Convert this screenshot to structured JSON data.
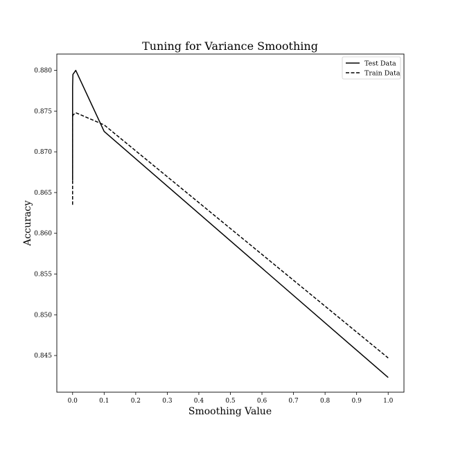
{
  "chart_data": {
    "type": "line",
    "title": "Tuning for Variance Smoothing",
    "xlabel": "Smoothing Value",
    "ylabel": "Accuracy",
    "xlim": [
      -0.05,
      1.05
    ],
    "ylim": [
      0.8405,
      0.882
    ],
    "xticks": [
      0.0,
      0.1,
      0.2,
      0.3,
      0.4,
      0.5,
      0.6,
      0.7,
      0.8,
      0.9,
      1.0
    ],
    "xtick_labels": [
      "0.0",
      "0.1",
      "0.2",
      "0.3",
      "0.4",
      "0.5",
      "0.6",
      "0.7",
      "0.8",
      "0.9",
      "1.0"
    ],
    "yticks": [
      0.845,
      0.85,
      0.855,
      0.86,
      0.865,
      0.87,
      0.875,
      0.88
    ],
    "ytick_labels": [
      "0.845",
      "0.850",
      "0.855",
      "0.860",
      "0.865",
      "0.870",
      "0.875",
      "0.880"
    ],
    "grid": false,
    "legend_position": "top-right",
    "series": [
      {
        "name": "Test Data",
        "style": "solid",
        "color": "#000000",
        "x": [
          0.0,
          0.0,
          0.001,
          0.01,
          0.1,
          1.0
        ],
        "y": [
          0.8665,
          0.878,
          0.8795,
          0.88,
          0.8725,
          0.8423
        ]
      },
      {
        "name": "Train Data",
        "style": "dashed",
        "color": "#000000",
        "x": [
          0.0,
          0.0,
          0.001,
          0.01,
          0.1,
          1.0
        ],
        "y": [
          0.8635,
          0.8742,
          0.8745,
          0.8748,
          0.8733,
          0.8447
        ]
      }
    ]
  }
}
